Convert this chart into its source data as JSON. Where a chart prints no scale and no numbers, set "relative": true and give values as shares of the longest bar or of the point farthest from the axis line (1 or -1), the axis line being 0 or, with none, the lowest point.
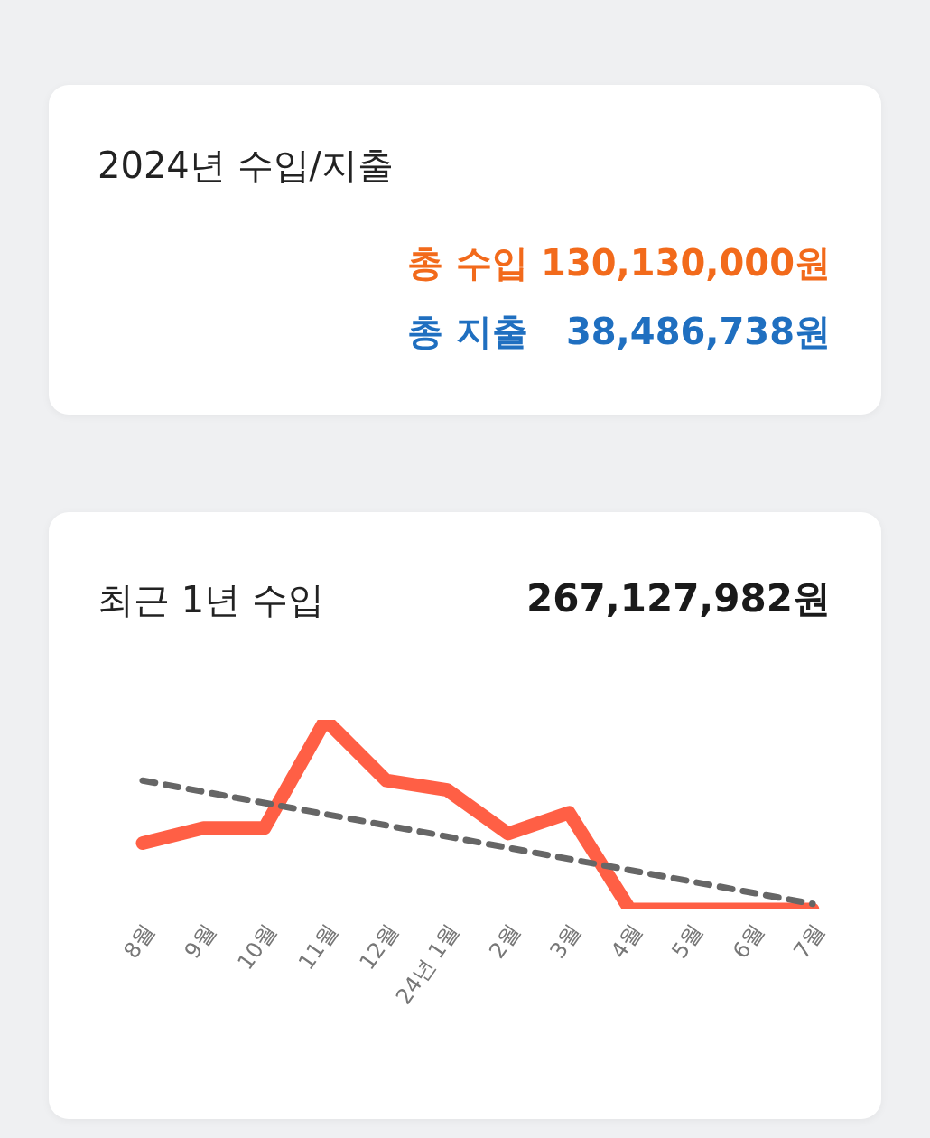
{
  "chart_data": [
    {
      "type": "other",
      "title": "2024년 수입/지출",
      "annotations": [
        "총 수입 130,130,000원",
        "총 지출   38,486,738원"
      ]
    },
    {
      "type": "line",
      "title": "최근 1년 수입",
      "annotations": [
        "267,127,982원"
      ],
      "relative": true,
      "marker": "none",
      "categories": [
        "8월",
        "9월",
        "10월",
        "11월",
        "12월",
        "24년 1월",
        "2월",
        "3월",
        "4월",
        "5월",
        "6월",
        "7월"
      ],
      "series": [
        {
          "color": "#ff5f45",
          "values": [
            0.35,
            0.43,
            0.43,
            1,
            0.68,
            0.63,
            0.4,
            0.51,
            0,
            0,
            0,
            0
          ],
          "line_style": "solid"
        },
        {
          "type": "line",
          "color": "#666666",
          "x": [
            "8월",
            "7월"
          ],
          "values": [
            0.68,
            0.03
          ],
          "line_style": "dashed"
        }
      ]
    }
  ]
}
